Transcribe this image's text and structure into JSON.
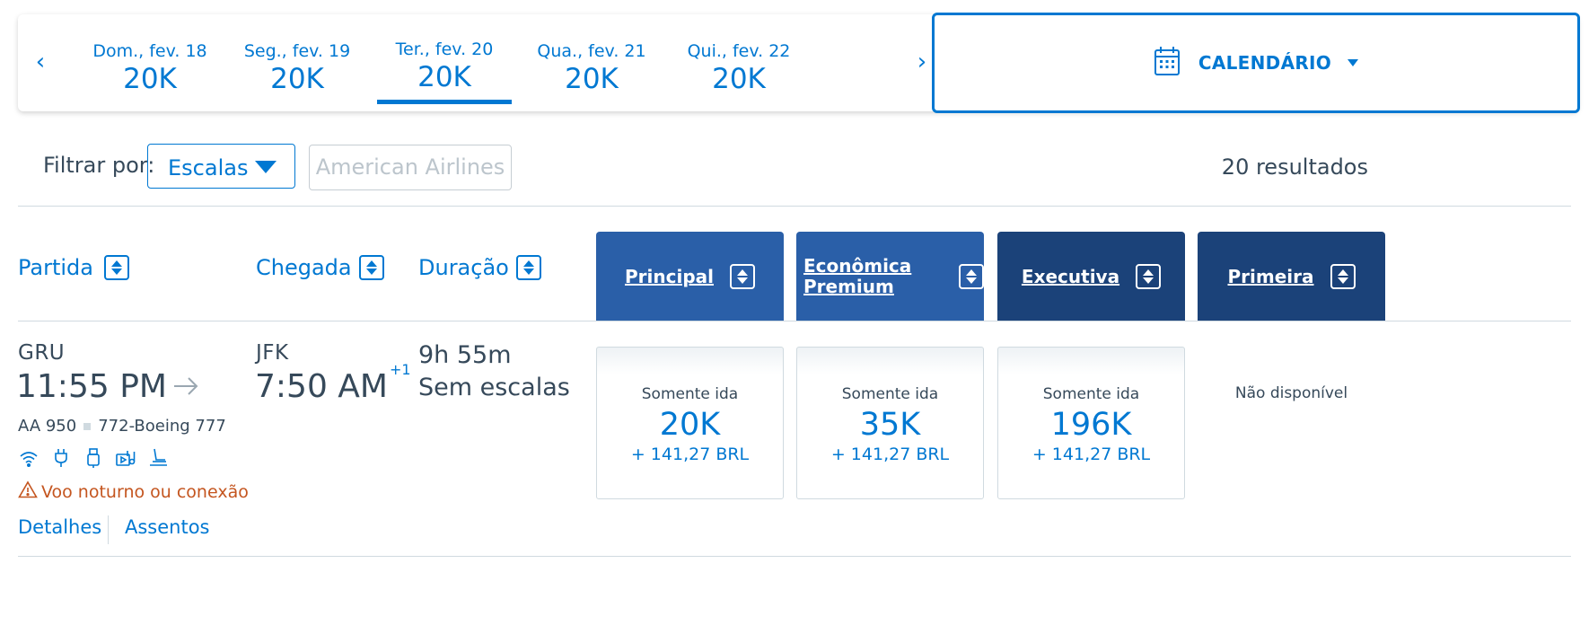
{
  "date_strip": {
    "prev_arrow": "‹",
    "next_arrow": "›",
    "dates": [
      {
        "label": "Dom., fev. 18",
        "price": "20K"
      },
      {
        "label": "Seg., fev. 19",
        "price": "20K"
      },
      {
        "label": "Ter., fev. 20",
        "price": "20K",
        "selected": true
      },
      {
        "label": "Qua., fev. 21",
        "price": "20K"
      },
      {
        "label": "Qui., fev. 22",
        "price": "20K"
      }
    ],
    "calendar_label": "CALENDÁRIO"
  },
  "filter": {
    "label": "Filtrar por:",
    "stops_value": "Escalas",
    "airline_placeholder": "American Airlines",
    "results": "20 resultados"
  },
  "columns": {
    "departure": "Partida",
    "arrival": "Chegada",
    "duration": "Duração",
    "cabins": [
      "Principal",
      "Econômica Premium",
      "Executiva",
      "Primeira"
    ]
  },
  "flight": {
    "origin": "GRU",
    "depart_time": "11:55 PM",
    "destination": "JFK",
    "arrive_time": "7:50 AM",
    "day_offset": "+1",
    "flight_number": "AA 950",
    "aircraft": "772-Boeing 777",
    "amenities": [
      "wifi-icon",
      "power-outlet-icon",
      "usb-icon",
      "entertainment-icon",
      "lie-flat-seat-icon"
    ],
    "duration": "9h 55m",
    "stops": "Sem escalas",
    "warning": "Voo noturno ou conexão",
    "details_link": "Detalhes",
    "seats_link": "Assentos",
    "fares": [
      {
        "label": "Somente ida",
        "price": "20K",
        "tax": "+ 141,27 BRL"
      },
      {
        "label": "Somente ida",
        "price": "35K",
        "tax": "+ 141,27 BRL"
      },
      {
        "label": "Somente ida",
        "price": "196K",
        "tax": "+ 141,27 BRL"
      }
    ],
    "first_unavailable": "Não disponível"
  },
  "colors": {
    "accent": "#0078d2",
    "cabin_light": "#2a5fa8",
    "cabin_dark": "#1b4279",
    "warning": "#c4551f"
  }
}
